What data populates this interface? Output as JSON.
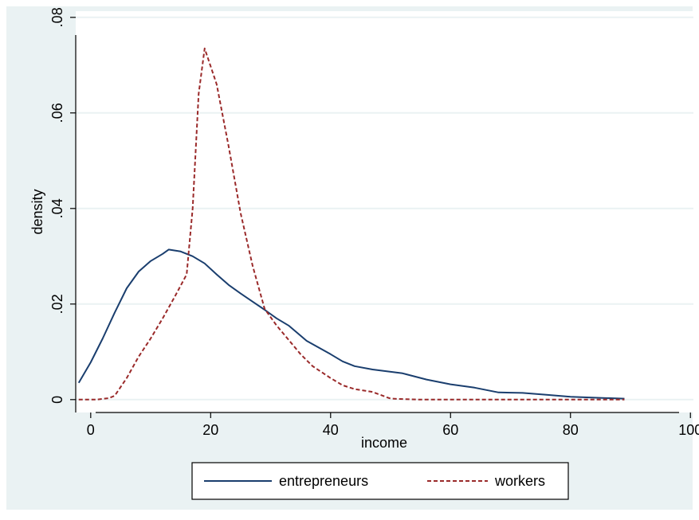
{
  "colors": {
    "outer_background": "#EAF2F3",
    "plot_background": "#FFFFFF",
    "gridline": "#EAF2F3",
    "axis": "#000000",
    "entrepreneurs": "#1A3E6E",
    "workers": "#9A2A2A"
  },
  "chart_data": {
    "type": "line",
    "title": "",
    "xlabel": "income",
    "ylabel": "density",
    "xlim": [
      -2.5,
      100.5
    ],
    "ylim": [
      -0.0027,
      0.0813
    ],
    "x_ticks": [
      0,
      20,
      40,
      60,
      80,
      100
    ],
    "x_tick_labels": [
      "0",
      "20",
      "40",
      "60",
      "80",
      "100"
    ],
    "y_ticks": [
      0,
      0.02,
      0.04,
      0.06,
      0.08
    ],
    "y_tick_labels": [
      "0",
      ".02",
      ".04",
      ".06",
      ".08"
    ],
    "grid": true,
    "legend_position": "bottom",
    "series": [
      {
        "name": "entrepreneurs",
        "style": "solid",
        "points": [
          [
            -2,
            0.0035
          ],
          [
            0,
            0.0078
          ],
          [
            2,
            0.0128
          ],
          [
            4,
            0.0182
          ],
          [
            6,
            0.0233
          ],
          [
            8,
            0.0268
          ],
          [
            10,
            0.029
          ],
          [
            12,
            0.0305
          ],
          [
            13,
            0.0314
          ],
          [
            15,
            0.031
          ],
          [
            17,
            0.03
          ],
          [
            19,
            0.0285
          ],
          [
            21,
            0.0262
          ],
          [
            23,
            0.024
          ],
          [
            25,
            0.0222
          ],
          [
            27,
            0.0205
          ],
          [
            29,
            0.0188
          ],
          [
            31,
            0.017
          ],
          [
            33,
            0.0155
          ],
          [
            36,
            0.0123
          ],
          [
            40,
            0.0095
          ],
          [
            42,
            0.008
          ],
          [
            44,
            0.007
          ],
          [
            47,
            0.0063
          ],
          [
            52,
            0.0055
          ],
          [
            56,
            0.0042
          ],
          [
            60,
            0.0032
          ],
          [
            64,
            0.0025
          ],
          [
            68,
            0.0015
          ],
          [
            72,
            0.0014
          ],
          [
            76,
            0.001
          ],
          [
            80,
            0.0006
          ],
          [
            84,
            0.0004
          ],
          [
            89,
            0.0002
          ]
        ]
      },
      {
        "name": "workers",
        "style": "dashed",
        "points": [
          [
            -2,
            0.0
          ],
          [
            1,
            0.0
          ],
          [
            3,
            0.0003
          ],
          [
            4,
            0.0008
          ],
          [
            6,
            0.0045
          ],
          [
            8,
            0.009
          ],
          [
            10,
            0.0128
          ],
          [
            12,
            0.017
          ],
          [
            14,
            0.0215
          ],
          [
            16,
            0.0262
          ],
          [
            17,
            0.04
          ],
          [
            18,
            0.064
          ],
          [
            19,
            0.0735
          ],
          [
            21,
            0.066
          ],
          [
            23,
            0.053
          ],
          [
            25,
            0.039
          ],
          [
            27,
            0.028
          ],
          [
            29,
            0.019
          ],
          [
            31,
            0.0155
          ],
          [
            33,
            0.0125
          ],
          [
            35,
            0.0095
          ],
          [
            37,
            0.007
          ],
          [
            40,
            0.0045
          ],
          [
            42,
            0.003
          ],
          [
            44,
            0.0022
          ],
          [
            47,
            0.0016
          ],
          [
            50,
            0.0002
          ],
          [
            55,
            0.0
          ],
          [
            60,
            0.0
          ],
          [
            70,
            0.0
          ],
          [
            80,
            0.0
          ],
          [
            89,
            0.0
          ]
        ]
      }
    ]
  }
}
